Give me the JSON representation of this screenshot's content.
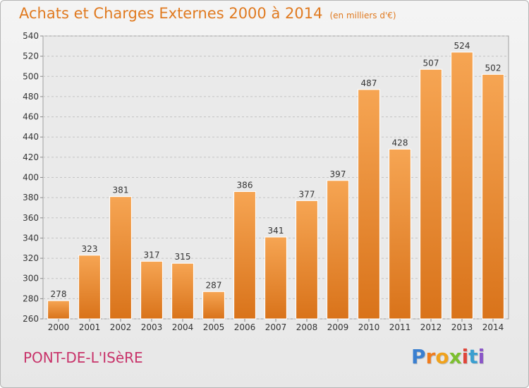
{
  "title": "Achats et Charges Externes 2000 à 2014",
  "unit": "(en milliers d'€)",
  "commune": "PONT-DE-L'ISèRE",
  "logo": {
    "letters": [
      "P",
      "r",
      "o",
      "x",
      "i",
      "t",
      "i"
    ],
    "colors": [
      "#3a7fd0",
      "#f07c1c",
      "#f0a21c",
      "#7cbf2f",
      "#e0453a",
      "#3a9fd0",
      "#8a56c8"
    ]
  },
  "colors": {
    "bar": "#f09a40",
    "bar_dark": "#e07818",
    "title": "#e07a20",
    "commune": "#c8336a"
  },
  "chart_data": {
    "type": "bar",
    "categories": [
      "2000",
      "2001",
      "2002",
      "2003",
      "2004",
      "2005",
      "2006",
      "2007",
      "2008",
      "2009",
      "2010",
      "2011",
      "2012",
      "2013",
      "2014"
    ],
    "values": [
      278,
      323,
      381,
      317,
      315,
      287,
      386,
      341,
      377,
      397,
      487,
      428,
      507,
      524,
      502
    ],
    "ylim": [
      260,
      540
    ],
    "yticks": [
      260,
      280,
      300,
      320,
      340,
      360,
      380,
      400,
      420,
      440,
      460,
      480,
      500,
      520,
      540
    ],
    "grid": true,
    "xlabel": "",
    "ylabel": ""
  }
}
